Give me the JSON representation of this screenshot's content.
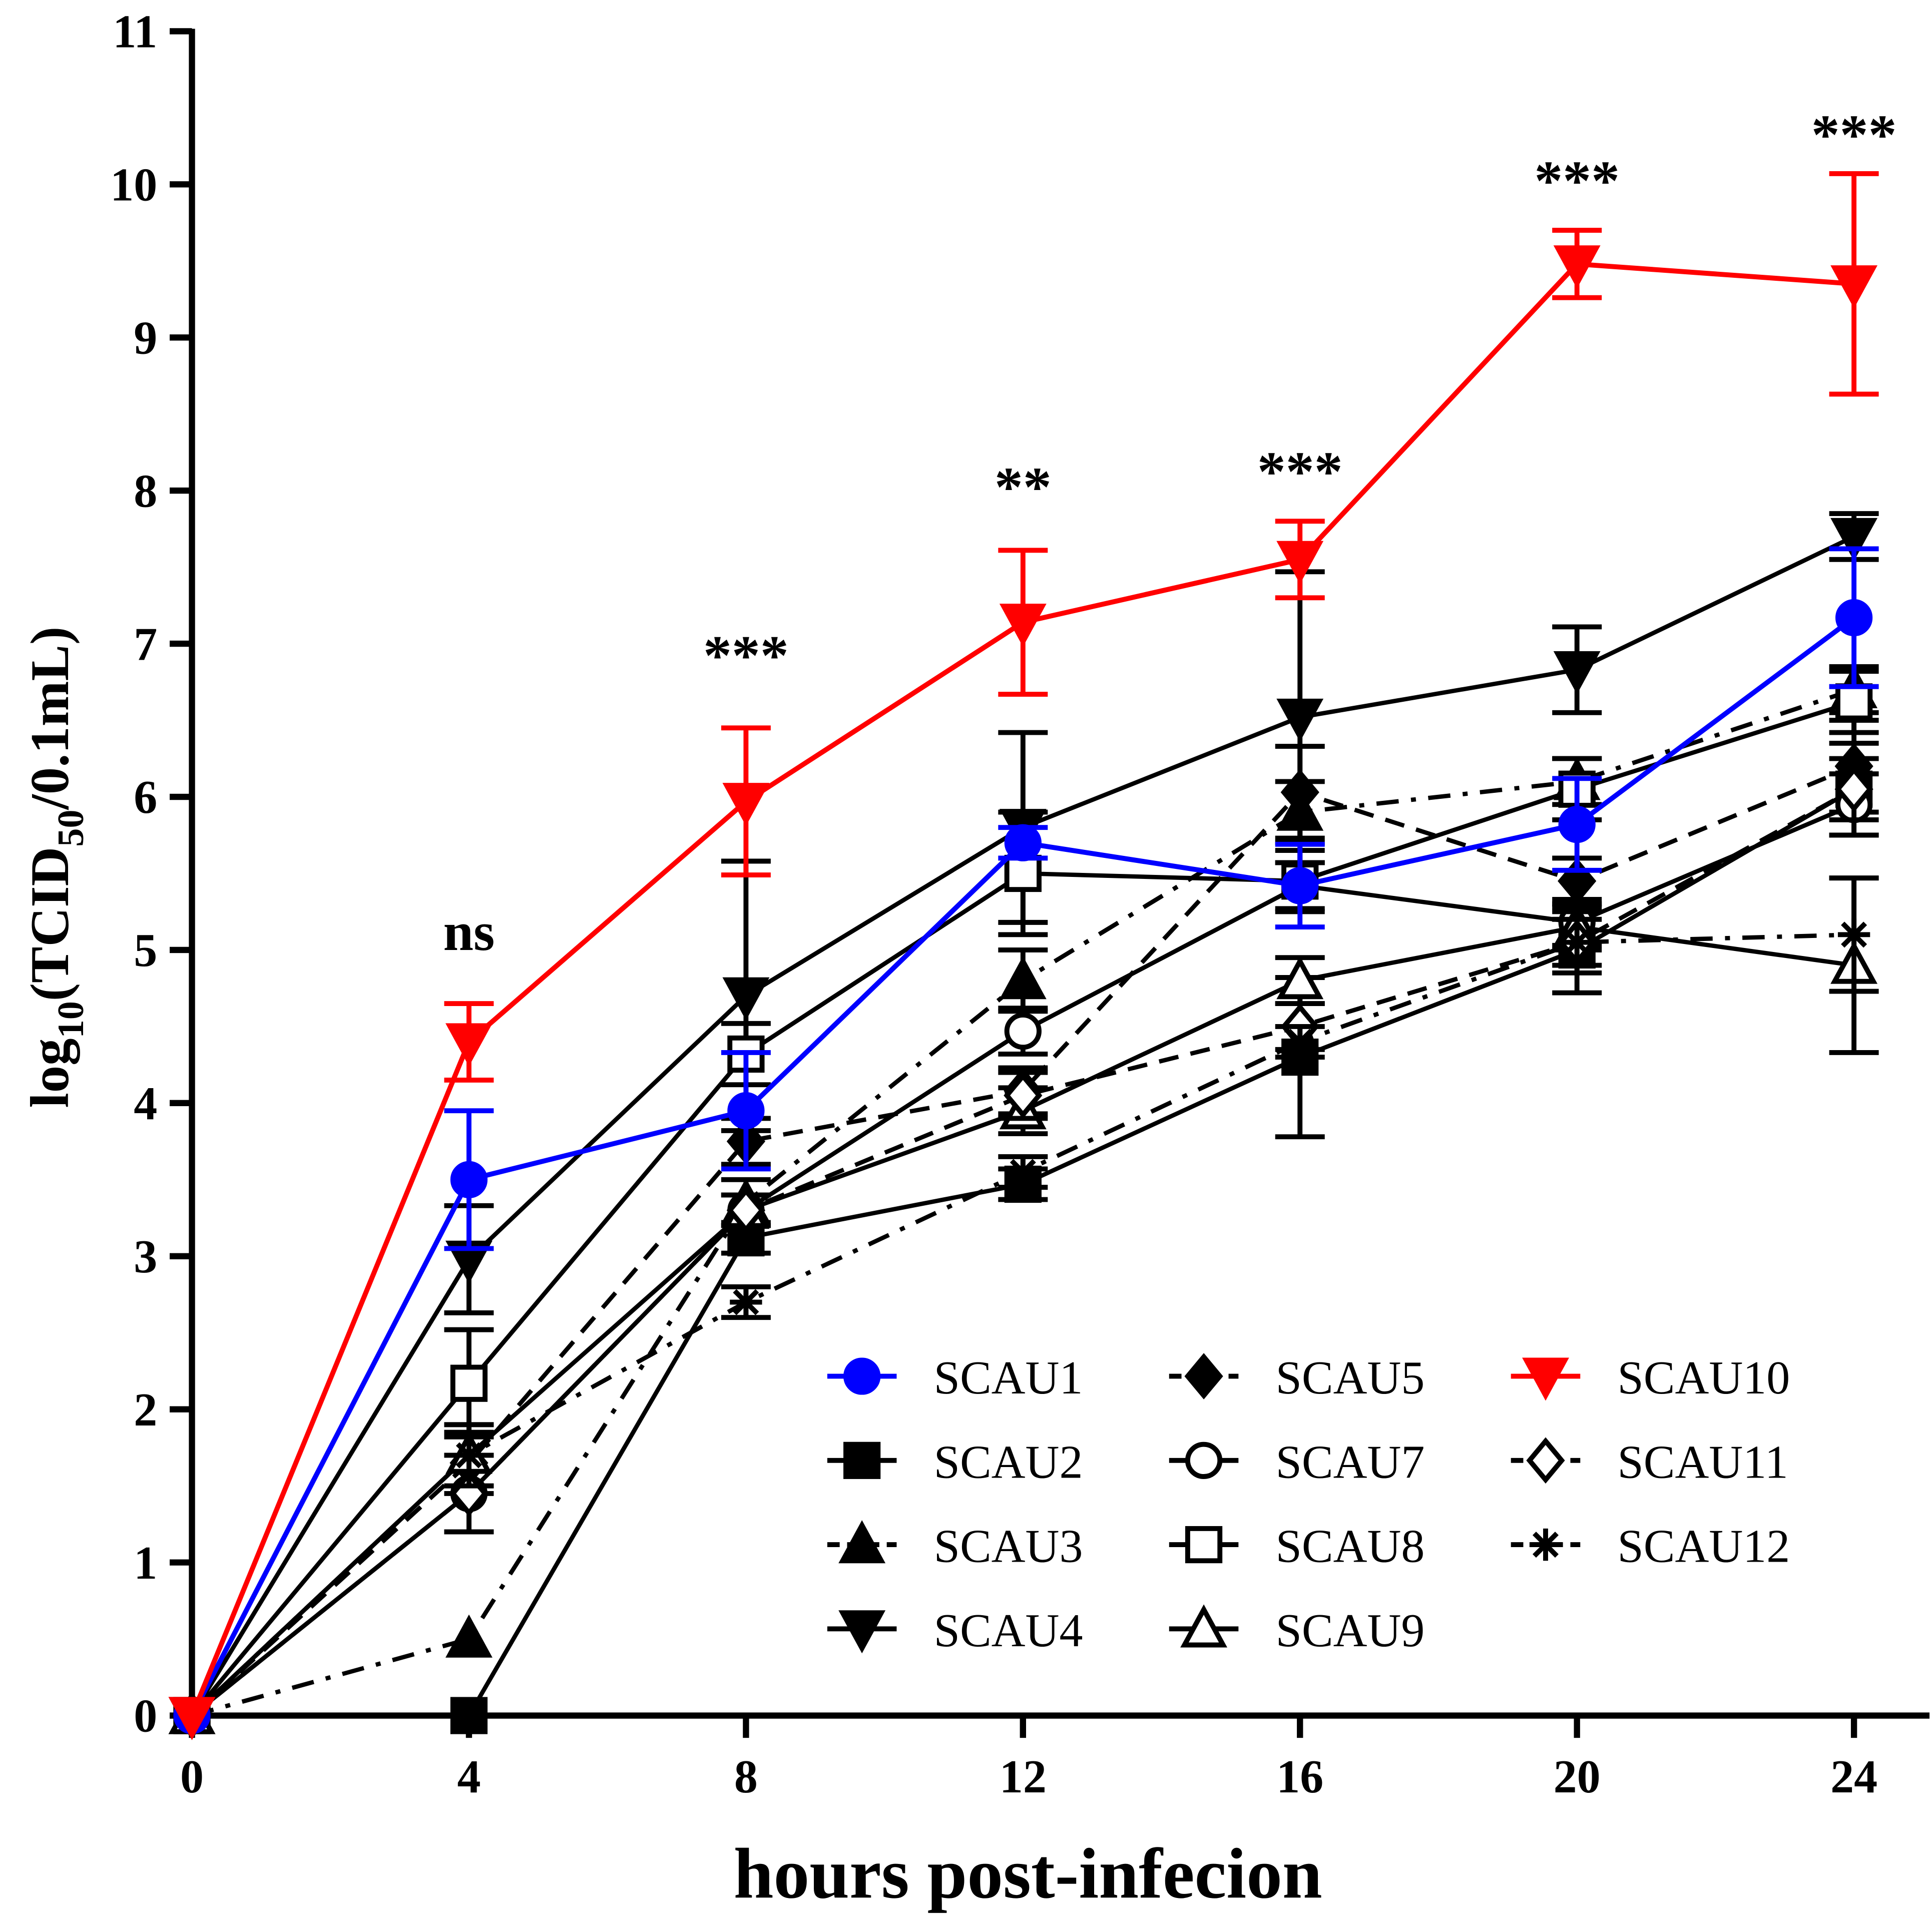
{
  "chart_data": {
    "type": "line",
    "title": "",
    "xlabel": "hours post-infecion",
    "ylabel_main": "log",
    "ylabel_sub1": "10",
    "ylabel_mid": "(TCID",
    "ylabel_sub2": "50",
    "ylabel_end": "/0.1mL)",
    "x": [
      0,
      4,
      8,
      12,
      16,
      20,
      24
    ],
    "xlim": [
      0,
      24
    ],
    "ylim": [
      0,
      11
    ],
    "xticks": [
      "0",
      "4",
      "8",
      "12",
      "16",
      "20",
      "24"
    ],
    "yticks": [
      "0",
      "1",
      "2",
      "3",
      "4",
      "5",
      "6",
      "7",
      "8",
      "9",
      "10",
      "11"
    ],
    "grid": false,
    "legend_position": "bottom-right",
    "series": [
      {
        "name": "SCAU1",
        "color": "#0000ff",
        "marker": "circle-filled",
        "dash": "solid",
        "values": [
          0,
          3.5,
          3.95,
          5.7,
          5.42,
          5.82,
          7.17
        ],
        "err": [
          0,
          0.45,
          0.38,
          0.1,
          0.27,
          0.3,
          0.45
        ]
      },
      {
        "name": "SCAU2",
        "color": "#000000",
        "marker": "square-filled",
        "dash": "solid",
        "values": [
          0,
          0,
          3.12,
          3.47,
          4.3,
          5.0,
          6.05
        ],
        "err": [
          0,
          0,
          0.1,
          0.1,
          0.52,
          0.28,
          0.3
        ]
      },
      {
        "name": "SCAU3",
        "color": "#000000",
        "marker": "triangle-up-filled",
        "dash": "dashdot",
        "values": [
          0,
          0.5,
          3.35,
          4.8,
          5.9,
          6.1,
          6.7
        ],
        "err": [
          0,
          0,
          0.15,
          0.2,
          0.2,
          0.15,
          0.15
        ]
      },
      {
        "name": "SCAU4",
        "color": "#000000",
        "marker": "triangle-down-filled",
        "dash": "solid",
        "values": [
          0,
          2.98,
          4.7,
          5.8,
          6.52,
          6.83,
          7.7
        ],
        "err": [
          0,
          0.35,
          0.88,
          0.62,
          0.95,
          0.28,
          0.15
        ]
      },
      {
        "name": "SCAU5",
        "color": "#000000",
        "marker": "diamond-filled",
        "dash": "dashed",
        "values": [
          0,
          1.65,
          3.75,
          4.08,
          6.03,
          5.45,
          6.2
        ],
        "err": [
          0,
          0.2,
          0.15,
          0.15,
          0.3,
          0.15,
          0.3
        ]
      },
      {
        "name": "SCAU7",
        "color": "#000000",
        "marker": "circle-open",
        "dash": "solid",
        "values": [
          0,
          1.45,
          3.3,
          4.47,
          5.42,
          5.18,
          5.95
        ],
        "err": [
          0,
          0.25,
          0.1,
          0.15,
          0.15,
          0.15,
          0.2
        ]
      },
      {
        "name": "SCAU8",
        "color": "#000000",
        "marker": "square-open",
        "dash": "solid",
        "values": [
          0,
          2.17,
          4.32,
          5.5,
          5.45,
          6.05,
          6.62
        ],
        "err": [
          0,
          0.35,
          0.2,
          0.4,
          0.2,
          0.2,
          0.2
        ]
      },
      {
        "name": "SCAU9",
        "color": "#000000",
        "marker": "triangle-up-open",
        "dash": "solid",
        "values": [
          0,
          1.7,
          3.3,
          3.95,
          4.8,
          5.15,
          4.9
        ],
        "err": [
          0,
          0.2,
          0.1,
          0.15,
          0.15,
          0.15,
          0.57
        ]
      },
      {
        "name": "SCAU10",
        "color": "#ff0000",
        "marker": "triangle-down-filled",
        "dash": "solid",
        "values": [
          0,
          4.4,
          5.97,
          7.14,
          7.55,
          9.48,
          9.35
        ],
        "err": [
          0,
          0.25,
          0.48,
          0.47,
          0.25,
          0.22,
          0.72
        ]
      },
      {
        "name": "SCAU11",
        "color": "#000000",
        "marker": "diamond-open",
        "dash": "dashed",
        "values": [
          0,
          1.45,
          3.3,
          4.05,
          4.5,
          5.05,
          6.05
        ],
        "err": [
          0,
          0.25,
          0.1,
          0.15,
          0.15,
          0.15,
          0.2
        ]
      },
      {
        "name": "SCAU12",
        "color": "#000000",
        "marker": "asterisk",
        "dash": "dashdot",
        "values": [
          0,
          1.7,
          2.7,
          3.55,
          4.4,
          5.05,
          5.1
        ],
        "err": [
          0,
          0.2,
          0.1,
          0.1,
          0.1,
          0.2,
          0.37
        ]
      }
    ],
    "annotations": [
      {
        "x": 4,
        "y": 5.0,
        "text": "ns"
      },
      {
        "x": 8,
        "y": 6.8,
        "text": "***"
      },
      {
        "x": 12,
        "y": 7.9,
        "text": "**"
      },
      {
        "x": 16,
        "y": 8.0,
        "text": "***"
      },
      {
        "x": 20,
        "y": 9.9,
        "text": "***"
      },
      {
        "x": 24,
        "y": 10.2,
        "text": "***"
      }
    ]
  }
}
